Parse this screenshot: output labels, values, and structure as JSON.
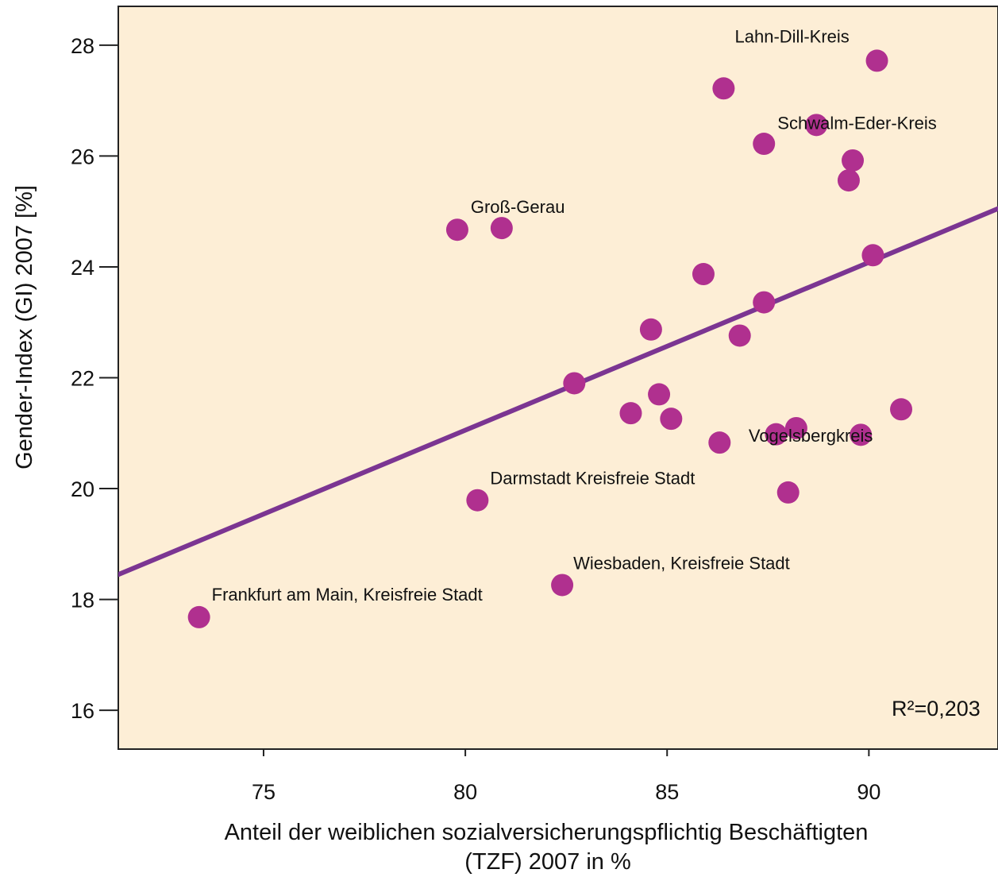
{
  "chart_data": {
    "type": "scatter",
    "title": "",
    "xlabel_lines": [
      "Anteil der weiblichen sozialversicherungspflichtig Beschäftigten",
      "(TZF) 2007 in %"
    ],
    "ylabel": "Gender-Index (GI) 2007 [%]",
    "xlim": [
      71.4,
      93.2
    ],
    "ylim": [
      15.3,
      28.7
    ],
    "xticks": [
      75,
      80,
      85,
      90
    ],
    "yticks": [
      16,
      18,
      20,
      22,
      24,
      26,
      28
    ],
    "grid": false,
    "background_color": "#fdeed6",
    "point_color": "#b0308f",
    "line_color": "#7b3592",
    "r_squared_label": "R²=0,203",
    "regression_line": {
      "x": [
        71.4,
        93.2
      ],
      "y": [
        18.45,
        25.05
      ]
    },
    "points": [
      {
        "x": 73.4,
        "y": 17.68,
        "label": "Frankfurt am Main, Kreisfreie Stadt"
      },
      {
        "x": 79.8,
        "y": 24.67,
        "label": ""
      },
      {
        "x": 80.3,
        "y": 19.79,
        "label": "Darmstadt Kreisfreie Stadt"
      },
      {
        "x": 80.9,
        "y": 24.7,
        "label": "Groß-Gerau"
      },
      {
        "x": 82.4,
        "y": 18.26,
        "label": "Wiesbaden, Kreisfreie Stadt"
      },
      {
        "x": 82.7,
        "y": 21.9,
        "label": ""
      },
      {
        "x": 84.1,
        "y": 21.36,
        "label": ""
      },
      {
        "x": 84.6,
        "y": 22.87,
        "label": ""
      },
      {
        "x": 84.8,
        "y": 21.7,
        "label": ""
      },
      {
        "x": 85.1,
        "y": 21.26,
        "label": ""
      },
      {
        "x": 85.9,
        "y": 23.87,
        "label": ""
      },
      {
        "x": 86.3,
        "y": 20.83,
        "label": ""
      },
      {
        "x": 86.4,
        "y": 27.22,
        "label": ""
      },
      {
        "x": 86.8,
        "y": 22.76,
        "label": ""
      },
      {
        "x": 87.4,
        "y": 23.36,
        "label": ""
      },
      {
        "x": 87.4,
        "y": 26.22,
        "label": ""
      },
      {
        "x": 87.7,
        "y": 20.98,
        "label": ""
      },
      {
        "x": 88.0,
        "y": 19.93,
        "label": ""
      },
      {
        "x": 88.2,
        "y": 21.09,
        "label": "Vogelsbergkreis"
      },
      {
        "x": 88.7,
        "y": 26.56,
        "label": "Schwalm-Eder-Kreis"
      },
      {
        "x": 89.5,
        "y": 25.56,
        "label": ""
      },
      {
        "x": 89.6,
        "y": 25.92,
        "label": ""
      },
      {
        "x": 89.8,
        "y": 20.97,
        "label": ""
      },
      {
        "x": 90.1,
        "y": 24.21,
        "label": ""
      },
      {
        "x": 90.2,
        "y": 27.72,
        "label": "Lahn-Dill-Kreis"
      },
      {
        "x": 90.8,
        "y": 21.43,
        "label": ""
      }
    ]
  }
}
